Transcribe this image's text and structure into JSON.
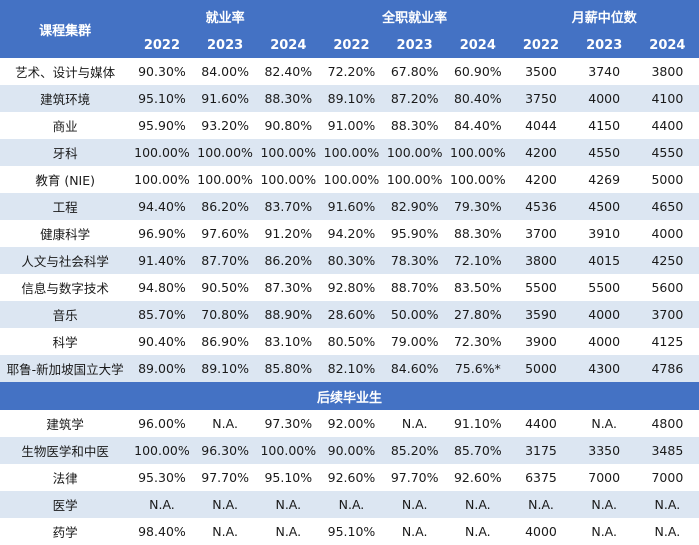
{
  "header": {
    "group_label": "课程集群",
    "col_groups": [
      "就业率",
      "全职就业率",
      "月薪中位数"
    ],
    "years": [
      "2022",
      "2023",
      "2024"
    ]
  },
  "section_label": "后续毕业生",
  "rows": [
    {
      "name": "艺术、设计与媒体",
      "values": [
        "90.30%",
        "84.00%",
        "82.40%",
        "72.20%",
        "67.80%",
        "60.90%",
        "3500",
        "3740",
        "3800"
      ]
    },
    {
      "name": "建筑环境",
      "values": [
        "95.10%",
        "91.60%",
        "88.30%",
        "89.10%",
        "87.20%",
        "80.40%",
        "3750",
        "4000",
        "4100"
      ]
    },
    {
      "name": "商业",
      "values": [
        "95.90%",
        "93.20%",
        "90.80%",
        "91.00%",
        "88.30%",
        "84.40%",
        "4044",
        "4150",
        "4400"
      ]
    },
    {
      "name": "牙科",
      "values": [
        "100.00%",
        "100.00%",
        "100.00%",
        "100.00%",
        "100.00%",
        "100.00%",
        "4200",
        "4550",
        "4550"
      ]
    },
    {
      "name": "教育 (NIE)",
      "values": [
        "100.00%",
        "100.00%",
        "100.00%",
        "100.00%",
        "100.00%",
        "100.00%",
        "4200",
        "4269",
        "5000"
      ]
    },
    {
      "name": "工程",
      "values": [
        "94.40%",
        "86.20%",
        "83.70%",
        "91.60%",
        "82.90%",
        "79.30%",
        "4536",
        "4500",
        "4650"
      ]
    },
    {
      "name": "健康科学",
      "values": [
        "96.90%",
        "97.60%",
        "91.20%",
        "94.20%",
        "95.90%",
        "88.30%",
        "3700",
        "3910",
        "4000"
      ]
    },
    {
      "name": "人文与社会科学",
      "values": [
        "91.40%",
        "87.70%",
        "86.20%",
        "80.30%",
        "78.30%",
        "72.10%",
        "3800",
        "4015",
        "4250"
      ]
    },
    {
      "name": "信息与数字技术",
      "values": [
        "94.80%",
        "90.50%",
        "87.30%",
        "92.80%",
        "88.70%",
        "83.50%",
        "5500",
        "5500",
        "5600"
      ]
    },
    {
      "name": "音乐",
      "values": [
        "85.70%",
        "70.80%",
        "88.90%",
        "28.60%",
        "50.00%",
        "27.80%",
        "3590",
        "4000",
        "3700"
      ]
    },
    {
      "name": "科学",
      "values": [
        "90.40%",
        "86.90%",
        "83.10%",
        "80.50%",
        "79.00%",
        "72.30%",
        "3900",
        "4000",
        "4125"
      ]
    },
    {
      "name": "耶鲁-新加坡国立大学",
      "values": [
        "89.00%",
        "89.10%",
        "85.80%",
        "82.10%",
        "84.60%",
        "75.6%*",
        "5000",
        "4300",
        "4786"
      ]
    }
  ],
  "section_rows": [
    {
      "name": "建筑学",
      "values": [
        "96.00%",
        "N.A.",
        "97.30%",
        "92.00%",
        "N.A.",
        "91.10%",
        "4400",
        "N.A.",
        "4800"
      ]
    },
    {
      "name": "生物医学和中医",
      "values": [
        "100.00%",
        "96.30%",
        "100.00%",
        "90.00%",
        "85.20%",
        "85.70%",
        "3175",
        "3350",
        "3485"
      ]
    },
    {
      "name": "法律",
      "values": [
        "95.30%",
        "97.70%",
        "95.10%",
        "92.60%",
        "97.70%",
        "92.60%",
        "6375",
        "7000",
        "7000"
      ]
    },
    {
      "name": "医学",
      "values": [
        "N.A.",
        "N.A.",
        "N.A.",
        "N.A.",
        "N.A.",
        "N.A.",
        "N.A.",
        "N.A.",
        "N.A."
      ]
    },
    {
      "name": "药学",
      "values": [
        "98.40%",
        "N.A.",
        "N.A.",
        "95.10%",
        "N.A.",
        "N.A.",
        "4000",
        "N.A.",
        "N.A."
      ]
    }
  ]
}
